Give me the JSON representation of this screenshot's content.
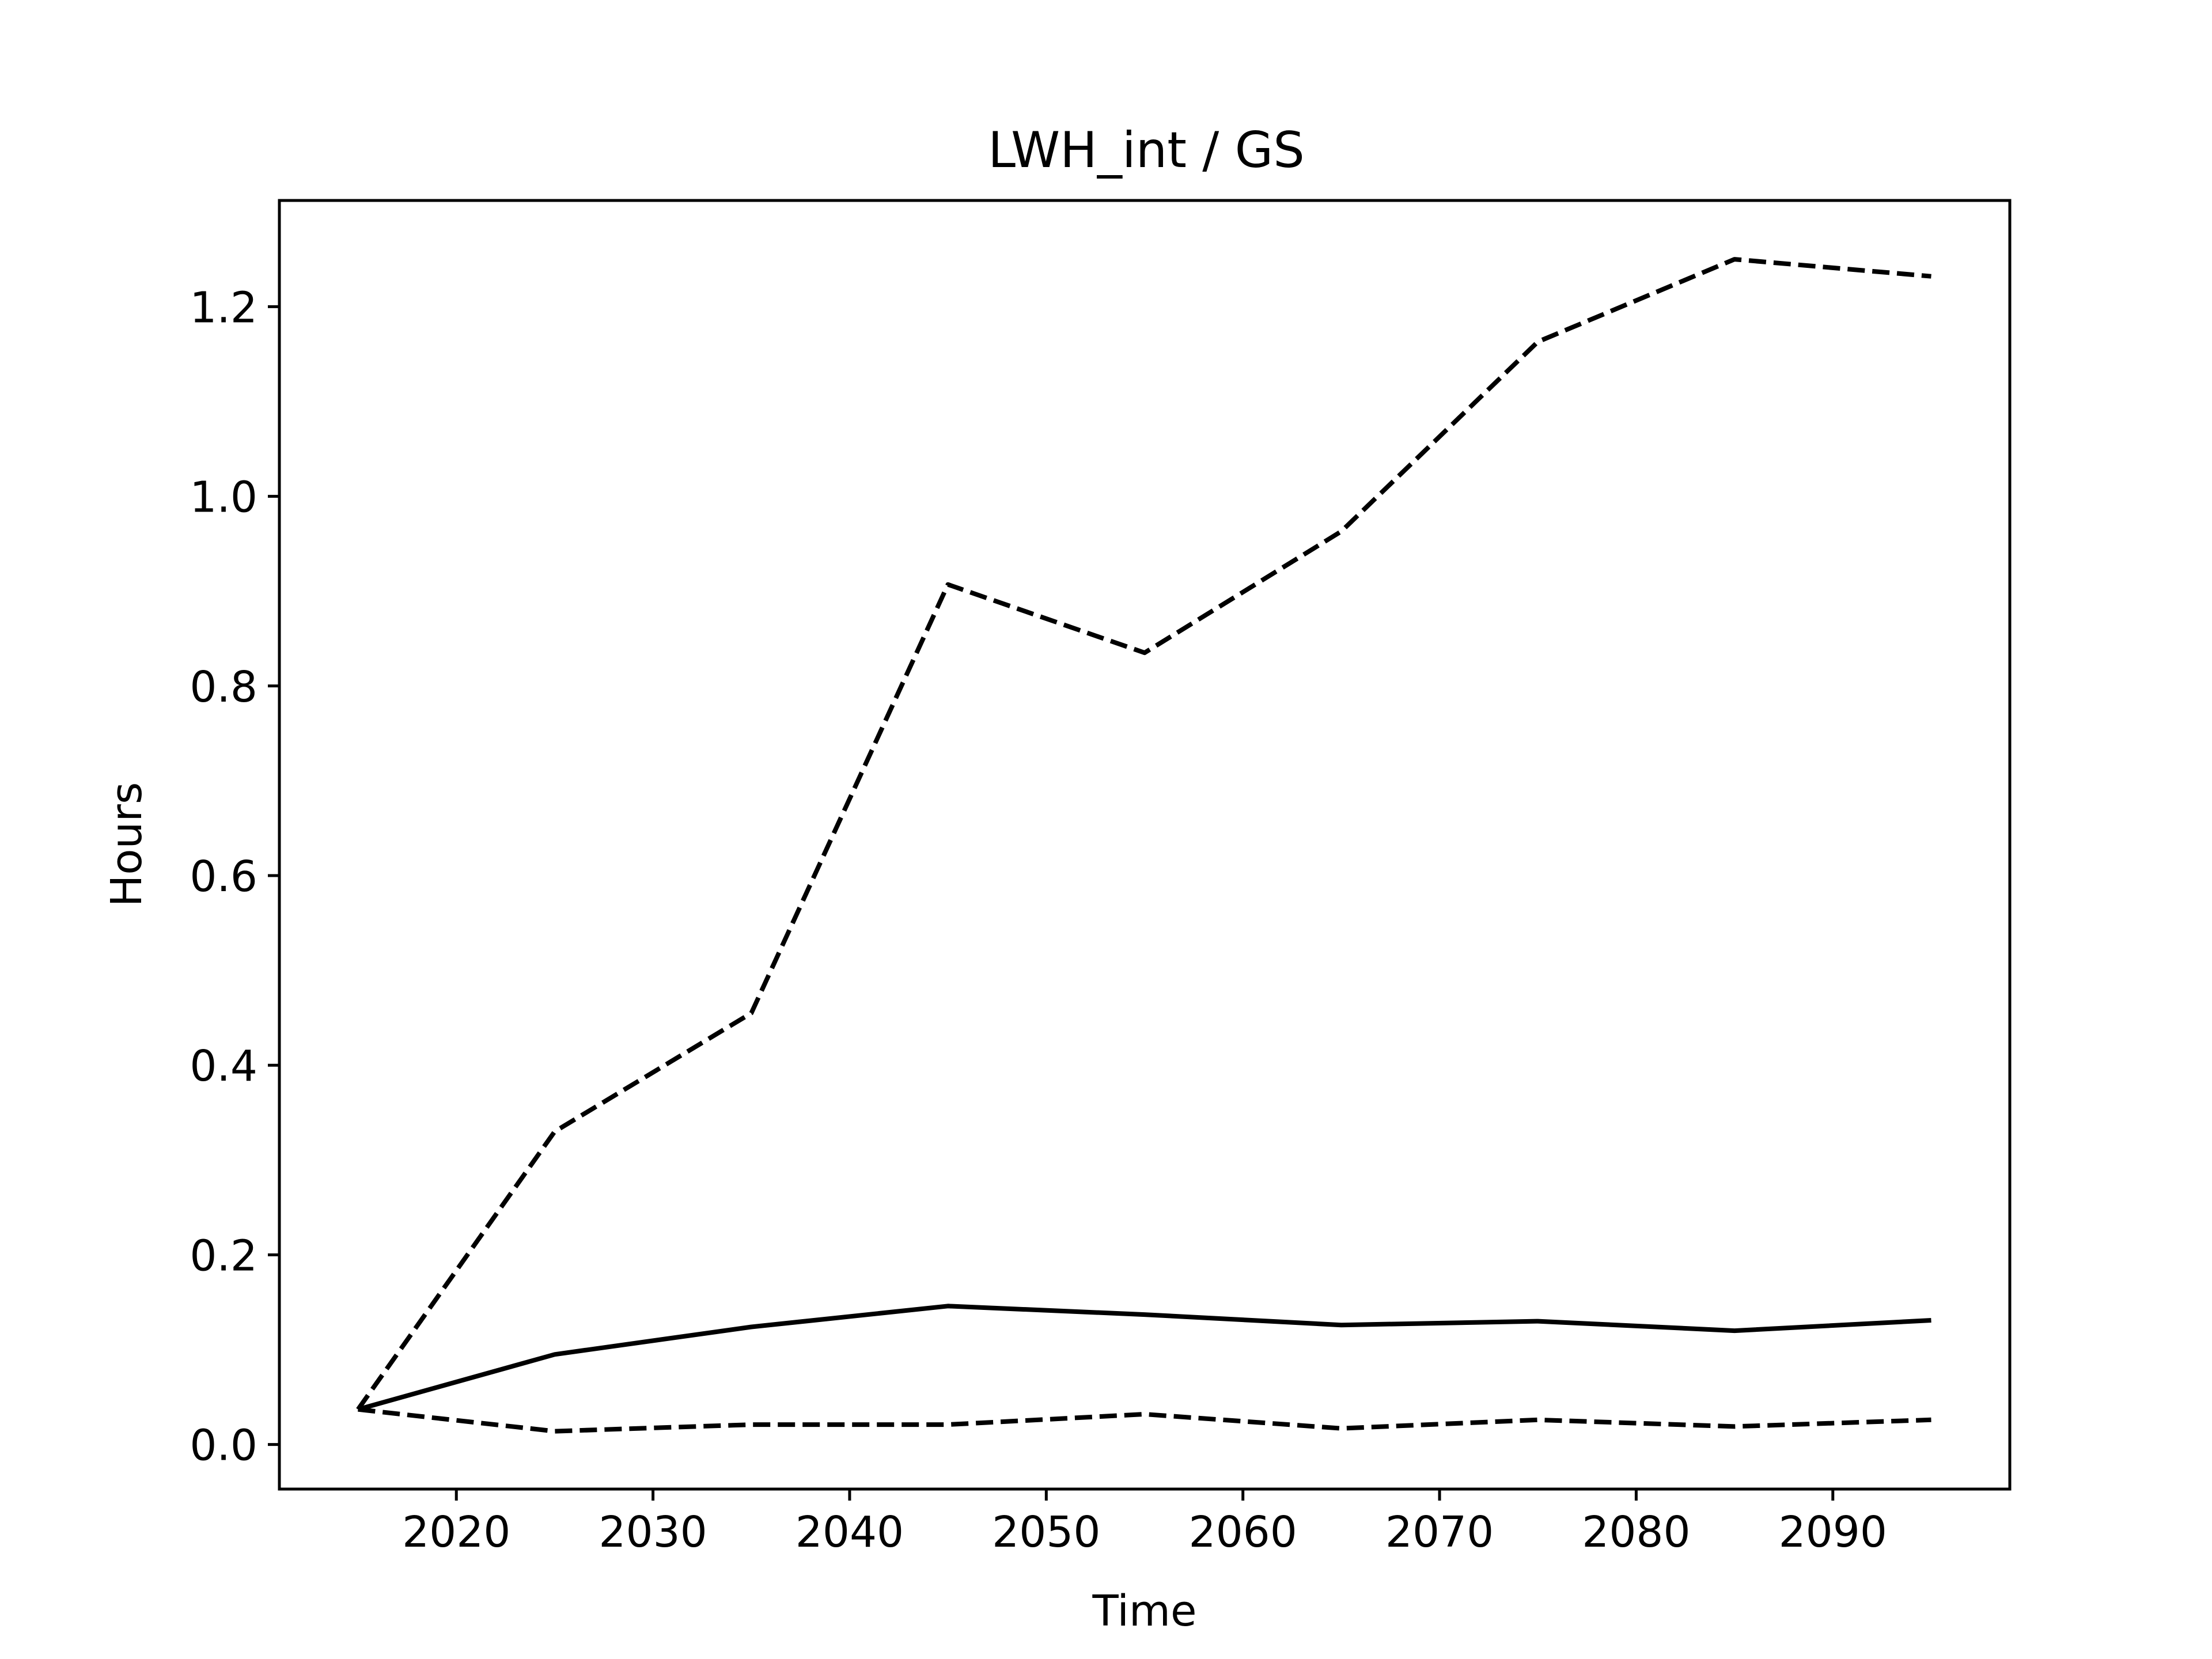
{
  "chart_data": {
    "type": "line",
    "title": "LWH_int / GS",
    "xlabel": "Time",
    "ylabel": "Hours",
    "xlim": [
      2011,
      2099
    ],
    "ylim": [
      -0.047,
      1.312
    ],
    "xticks": [
      2020,
      2030,
      2040,
      2050,
      2060,
      2070,
      2080,
      2090
    ],
    "yticks": [
      0.0,
      0.2,
      0.4,
      0.6,
      0.8,
      1.0,
      1.2
    ],
    "ytick_labels": [
      "0.0",
      "0.2",
      "0.4",
      "0.6",
      "0.8",
      "1.0",
      "1.2"
    ],
    "grid": false,
    "x": [
      2015,
      2025,
      2035,
      2045,
      2055,
      2065,
      2075,
      2085,
      2095
    ],
    "series": [
      {
        "style": "dashed",
        "color": "#000000",
        "values": [
          0.037,
          0.33,
          0.455,
          0.907,
          0.835,
          0.963,
          1.163,
          1.25,
          1.232
        ]
      },
      {
        "style": "solid",
        "color": "#000000",
        "values": [
          0.037,
          0.095,
          0.124,
          0.146,
          0.137,
          0.126,
          0.13,
          0.12,
          0.131
        ]
      },
      {
        "style": "dashed",
        "color": "#000000",
        "values": [
          0.037,
          0.014,
          0.021,
          0.021,
          0.032,
          0.017,
          0.026,
          0.019,
          0.026
        ]
      }
    ]
  }
}
